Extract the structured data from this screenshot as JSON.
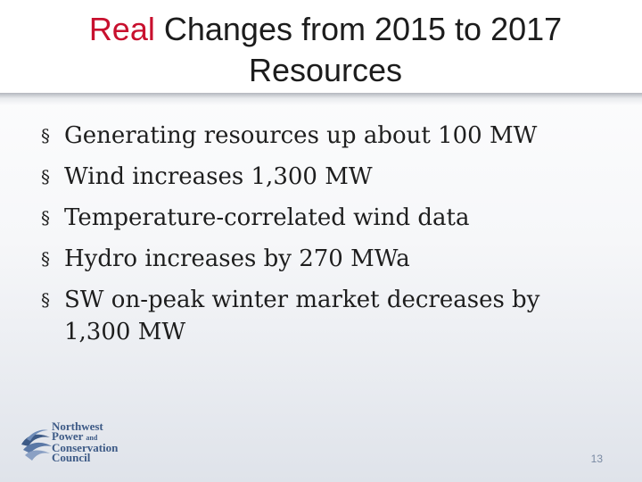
{
  "slide": {
    "title_accent": "Real",
    "title_rest": " Changes from 2015 to 2017",
    "title_line2": "Resources",
    "bullet_glyph": "§",
    "bullets": [
      "Generating resources up about 100 MW",
      "Wind increases 1,300 MW",
      "Temperature-correlated wind data",
      "Hydro increases by 270 MWa",
      "SW on-peak winter market decreases by 1,300 MW"
    ],
    "page_number": "13",
    "accent_color": "#c8102e"
  },
  "logo": {
    "line1": "Northwest",
    "line2": "Power",
    "line2_small": "and",
    "line3": "Conservation",
    "line4": "Council",
    "color": "#3d5a86"
  }
}
